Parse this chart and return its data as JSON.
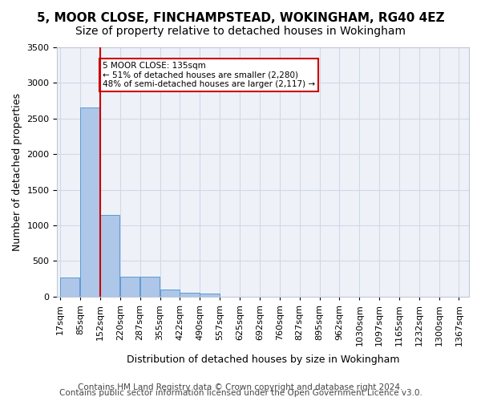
{
  "title_line1": "5, MOOR CLOSE, FINCHAMPSTEAD, WOKINGHAM, RG40 4EZ",
  "title_line2": "Size of property relative to detached houses in Wokingham",
  "xlabel": "Distribution of detached houses by size in Wokingham",
  "ylabel": "Number of detached properties",
  "bin_labels": [
    "17sqm",
    "85sqm",
    "152sqm",
    "220sqm",
    "287sqm",
    "355sqm",
    "422sqm",
    "490sqm",
    "557sqm",
    "625sqm",
    "692sqm",
    "760sqm",
    "827sqm",
    "895sqm",
    "962sqm",
    "1030sqm",
    "1097sqm",
    "1165sqm",
    "1232sqm",
    "1300sqm",
    "1367sqm"
  ],
  "bin_edges": [
    17,
    85,
    152,
    220,
    287,
    355,
    422,
    490,
    557,
    625,
    692,
    760,
    827,
    895,
    962,
    1030,
    1097,
    1165,
    1232,
    1300,
    1367
  ],
  "counts": [
    270,
    2650,
    1150,
    280,
    280,
    100,
    60,
    40,
    0,
    0,
    0,
    0,
    0,
    0,
    0,
    0,
    0,
    0,
    0,
    0
  ],
  "bar_color": "#aec6e8",
  "bar_edge_color": "#5b9bd5",
  "grid_color": "#d0d8e8",
  "bg_color": "#eef2f8",
  "property_line_x": 152,
  "property_line_color": "#cc0000",
  "annotation_text": "5 MOOR CLOSE: 135sqm\n← 51% of detached houses are smaller (2,280)\n48% of semi-detached houses are larger (2,117) →",
  "annotation_box_color": "#ffffff",
  "annotation_box_edge": "#cc0000",
  "footer_line1": "Contains HM Land Registry data © Crown copyright and database right 2024.",
  "footer_line2": "Contains public sector information licensed under the Open Government Licence v3.0.",
  "ylim": [
    0,
    3500
  ],
  "yticks": [
    0,
    500,
    1000,
    1500,
    2000,
    2500,
    3000,
    3500
  ],
  "title_fontsize": 11,
  "subtitle_fontsize": 10,
  "axis_label_fontsize": 9,
  "tick_fontsize": 8,
  "footer_fontsize": 7.5
}
